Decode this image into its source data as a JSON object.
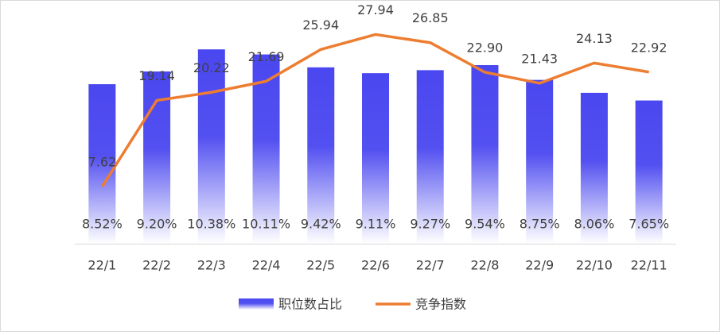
{
  "chart_data": {
    "type": "bar-line",
    "categories": [
      "22/1",
      "22/2",
      "22/3",
      "22/4",
      "22/5",
      "22/6",
      "22/7",
      "22/8",
      "22/9",
      "22/10",
      "22/11"
    ],
    "series": [
      {
        "name": "职位数占比",
        "type": "bar",
        "color": "#4a47f0",
        "values": [
          8.52,
          9.2,
          10.38,
          10.11,
          9.42,
          9.11,
          9.27,
          9.54,
          8.75,
          8.06,
          7.65
        ],
        "value_labels": [
          "8.52%",
          "9.20%",
          "10.38%",
          "10.11%",
          "9.42%",
          "9.11%",
          "9.27%",
          "9.54%",
          "8.75%",
          "8.06%",
          "7.65%"
        ]
      },
      {
        "name": "竞争指数",
        "type": "line",
        "axis": "y2",
        "color": "#ed7d31",
        "values": [
          7.62,
          19.14,
          20.22,
          21.69,
          25.94,
          27.94,
          26.85,
          22.9,
          21.43,
          24.13,
          22.92
        ],
        "value_labels": [
          "7.62",
          "19.14",
          "20.22",
          "21.69",
          "25.94",
          "27.94",
          "26.85",
          "22.90",
          "21.43",
          "24.13",
          "22.92"
        ]
      }
    ],
    "ylim": [
      0,
      12
    ],
    "y2lim": [
      0,
      30
    ],
    "grid": false,
    "legend": "bottom"
  }
}
